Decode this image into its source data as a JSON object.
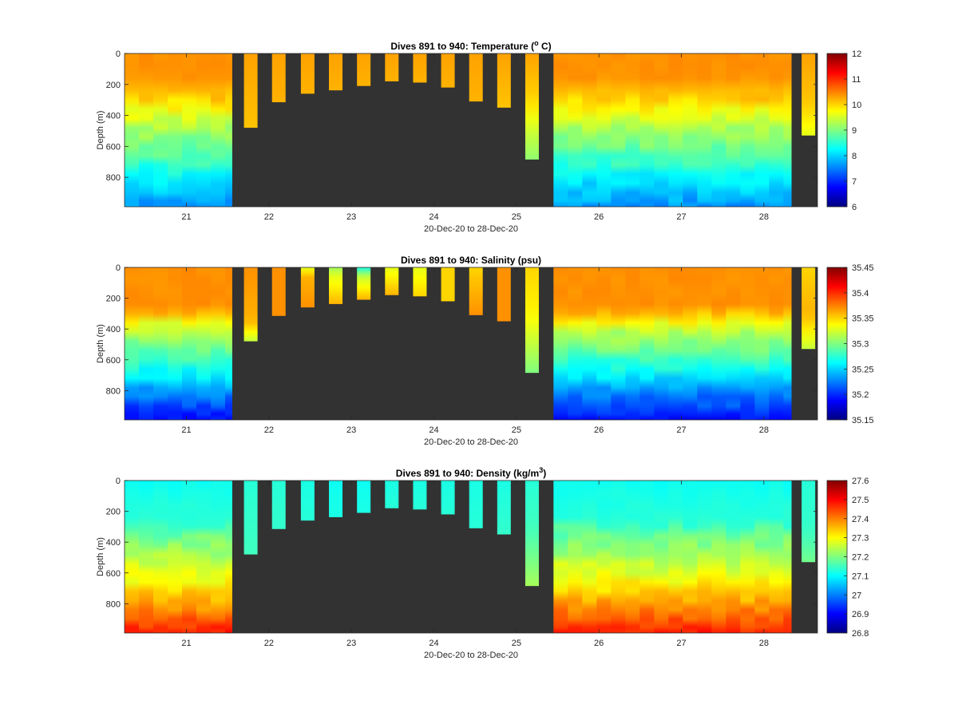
{
  "figure": {
    "background": "#ffffff",
    "plot_background": "#323232",
    "colormap": "jet"
  },
  "chart_data": [
    {
      "type": "heatmap",
      "title": {
        "main": "Dives 891 to 940: Temperature (",
        "sup": "o",
        "post": " C)"
      },
      "xlabel": "20-Dec-20 to 28-Dec-20",
      "ylabel": "Depth (m)",
      "xlim": [
        20.25,
        28.65
      ],
      "ylim": [
        0,
        990
      ],
      "x_ticks": [
        21,
        22,
        23,
        24,
        25,
        26,
        27,
        28
      ],
      "x_tick_labels": [
        "21",
        "22",
        "23",
        "24",
        "25",
        "26",
        "27",
        "28"
      ],
      "y_ticks": [
        0,
        200,
        400,
        600,
        800
      ],
      "y_tick_labels": [
        "0",
        "200",
        "400",
        "600",
        "800"
      ],
      "clim": [
        6,
        12
      ],
      "colorbar_ticks": [
        6,
        7,
        8,
        9,
        10,
        11,
        12
      ],
      "colorbar_tick_labels": [
        "6",
        "7",
        "8",
        "9",
        "10",
        "11",
        "12"
      ],
      "profile_model": "full",
      "profile": [
        [
          0,
          10.4
        ],
        [
          150,
          10.4
        ],
        [
          300,
          10.0
        ],
        [
          400,
          9.6
        ],
        [
          500,
          9.2
        ],
        [
          600,
          8.9
        ],
        [
          700,
          8.6
        ],
        [
          800,
          8.2
        ],
        [
          900,
          7.9
        ],
        [
          990,
          7.6
        ]
      ],
      "full_blocks": [
        {
          "start": 20.25,
          "end": 21.55,
          "max_depth": 990
        },
        {
          "start": 25.45,
          "end": 28.33,
          "max_depth": 990
        }
      ],
      "shallow_casts": [
        {
          "x": 21.78,
          "depth": 480,
          "values": [
            [
              0,
              10.3
            ],
            [
              480,
              10.1
            ]
          ]
        },
        {
          "x": 22.12,
          "depth": 315,
          "values": [
            [
              0,
              10.3
            ],
            [
              315,
              10.2
            ]
          ]
        },
        {
          "x": 22.47,
          "depth": 260,
          "values": [
            [
              0,
              10.3
            ],
            [
              260,
              10.2
            ]
          ]
        },
        {
          "x": 22.81,
          "depth": 238,
          "values": [
            [
              0,
              10.3
            ],
            [
              238,
              10.2
            ]
          ]
        },
        {
          "x": 23.15,
          "depth": 210,
          "values": [
            [
              0,
              10.3
            ],
            [
              210,
              10.2
            ]
          ]
        },
        {
          "x": 23.49,
          "depth": 180,
          "values": [
            [
              0,
              10.3
            ],
            [
              180,
              10.2
            ]
          ]
        },
        {
          "x": 23.83,
          "depth": 188,
          "values": [
            [
              0,
              10.3
            ],
            [
              188,
              10.2
            ]
          ]
        },
        {
          "x": 24.17,
          "depth": 220,
          "values": [
            [
              0,
              10.3
            ],
            [
              220,
              10.2
            ]
          ]
        },
        {
          "x": 24.51,
          "depth": 310,
          "values": [
            [
              0,
              10.3
            ],
            [
              310,
              10.2
            ]
          ]
        },
        {
          "x": 24.85,
          "depth": 350,
          "values": [
            [
              0,
              10.3
            ],
            [
              350,
              10.1
            ]
          ]
        },
        {
          "x": 25.19,
          "depth": 685,
          "values": [
            [
              0,
              10.3
            ],
            [
              300,
              10.0
            ],
            [
              480,
              9.5
            ],
            [
              685,
              9.1
            ]
          ]
        },
        {
          "x": 28.54,
          "depth": 530,
          "values": [
            [
              0,
              10.3
            ],
            [
              300,
              10.1
            ],
            [
              400,
              9.9
            ],
            [
              530,
              9.6
            ]
          ]
        }
      ]
    },
    {
      "type": "heatmap",
      "title": {
        "main": "Dives 891 to 940: Salinity (psu)",
        "sup": "",
        "post": ""
      },
      "xlabel": "20-Dec-20 to 28-Dec-20",
      "ylabel": "Depth (m)",
      "xlim": [
        20.25,
        28.65
      ],
      "ylim": [
        0,
        990
      ],
      "x_ticks": [
        21,
        22,
        23,
        24,
        25,
        26,
        27,
        28
      ],
      "x_tick_labels": [
        "21",
        "22",
        "23",
        "24",
        "25",
        "26",
        "27",
        "28"
      ],
      "y_ticks": [
        0,
        200,
        400,
        600,
        800
      ],
      "y_tick_labels": [
        "0",
        "200",
        "400",
        "600",
        "800"
      ],
      "clim": [
        35.15,
        35.45
      ],
      "colorbar_ticks": [
        35.15,
        35.2,
        35.25,
        35.3,
        35.35,
        35.4,
        35.45
      ],
      "colorbar_tick_labels": [
        "35.15",
        "35.2",
        "35.25",
        "35.3",
        "35.35",
        "35.4",
        "35.45"
      ],
      "profile_model": "full",
      "profile": [
        [
          0,
          35.37
        ],
        [
          250,
          35.37
        ],
        [
          320,
          35.35
        ],
        [
          400,
          35.32
        ],
        [
          500,
          35.3
        ],
        [
          600,
          35.28
        ],
        [
          700,
          35.26
        ],
        [
          800,
          35.23
        ],
        [
          900,
          35.21
        ],
        [
          990,
          35.19
        ]
      ],
      "full_blocks": [
        {
          "start": 20.25,
          "end": 21.55,
          "max_depth": 990
        },
        {
          "start": 25.45,
          "end": 28.33,
          "max_depth": 990
        }
      ],
      "shallow_casts": [
        {
          "x": 21.78,
          "depth": 480,
          "values": [
            [
              0,
              35.37
            ],
            [
              350,
              35.36
            ],
            [
              480,
              35.32
            ]
          ]
        },
        {
          "x": 22.12,
          "depth": 315,
          "values": [
            [
              0,
              35.37
            ],
            [
              315,
              35.37
            ]
          ]
        },
        {
          "x": 22.47,
          "depth": 260,
          "values": [
            [
              0,
              35.33
            ],
            [
              60,
              35.36
            ],
            [
              260,
              35.37
            ]
          ]
        },
        {
          "x": 22.81,
          "depth": 238,
          "values": [
            [
              0,
              35.31
            ],
            [
              60,
              35.33
            ],
            [
              238,
              35.36
            ]
          ]
        },
        {
          "x": 23.15,
          "depth": 210,
          "values": [
            [
              0,
              35.27
            ],
            [
              60,
              35.32
            ],
            [
              210,
              35.36
            ]
          ]
        },
        {
          "x": 23.49,
          "depth": 180,
          "values": [
            [
              0,
              35.33
            ],
            [
              180,
              35.36
            ]
          ]
        },
        {
          "x": 23.83,
          "depth": 188,
          "values": [
            [
              0,
              35.33
            ],
            [
              188,
              35.35
            ]
          ]
        },
        {
          "x": 24.17,
          "depth": 220,
          "values": [
            [
              0,
              35.35
            ],
            [
              220,
              35.35
            ]
          ]
        },
        {
          "x": 24.51,
          "depth": 310,
          "values": [
            [
              0,
              35.35
            ],
            [
              310,
              35.37
            ]
          ]
        },
        {
          "x": 24.85,
          "depth": 350,
          "values": [
            [
              0,
              35.37
            ],
            [
              350,
              35.37
            ]
          ]
        },
        {
          "x": 25.19,
          "depth": 685,
          "values": [
            [
              0,
              35.35
            ],
            [
              300,
              35.34
            ],
            [
              685,
              35.3
            ]
          ]
        },
        {
          "x": 28.54,
          "depth": 530,
          "values": [
            [
              0,
              35.35
            ],
            [
              300,
              35.36
            ],
            [
              530,
              35.32
            ]
          ]
        }
      ]
    },
    {
      "type": "heatmap",
      "title": {
        "main": "Dives 891 to 940: Density (kg/m",
        "sup": "3",
        "post": ")"
      },
      "xlabel": "20-Dec-20 to 28-Dec-20",
      "ylabel": "Depth (m)",
      "xlim": [
        20.25,
        28.65
      ],
      "ylim": [
        0,
        990
      ],
      "x_ticks": [
        21,
        22,
        23,
        24,
        25,
        26,
        27,
        28
      ],
      "x_tick_labels": [
        "21",
        "22",
        "23",
        "24",
        "25",
        "26",
        "27",
        "28"
      ],
      "y_ticks": [
        0,
        200,
        400,
        600,
        800
      ],
      "y_tick_labels": [
        "0",
        "200",
        "400",
        "600",
        "800"
      ],
      "clim": [
        26.8,
        27.6
      ],
      "colorbar_ticks": [
        26.8,
        26.9,
        27,
        27.1,
        27.2,
        27.3,
        27.4,
        27.5,
        27.6
      ],
      "colorbar_tick_labels": [
        "26.8",
        "26.9",
        "27",
        "27.1",
        "27.2",
        "27.3",
        "27.4",
        "27.5",
        "27.6"
      ],
      "profile_model": "full",
      "profile": [
        [
          0,
          27.11
        ],
        [
          250,
          27.13
        ],
        [
          350,
          27.18
        ],
        [
          450,
          27.22
        ],
        [
          550,
          27.26
        ],
        [
          650,
          27.3
        ],
        [
          750,
          27.35
        ],
        [
          850,
          27.4
        ],
        [
          920,
          27.44
        ],
        [
          990,
          27.48
        ]
      ],
      "full_blocks": [
        {
          "start": 20.25,
          "end": 21.55,
          "max_depth": 990
        },
        {
          "start": 25.45,
          "end": 28.33,
          "max_depth": 990
        }
      ],
      "shallow_casts": [
        {
          "x": 21.78,
          "depth": 480,
          "values": [
            [
              0,
              27.13
            ],
            [
              480,
              27.15
            ]
          ]
        },
        {
          "x": 22.12,
          "depth": 315,
          "values": [
            [
              0,
              27.13
            ],
            [
              315,
              27.14
            ]
          ]
        },
        {
          "x": 22.47,
          "depth": 260,
          "values": [
            [
              0,
              27.12
            ],
            [
              260,
              27.13
            ]
          ]
        },
        {
          "x": 22.81,
          "depth": 238,
          "values": [
            [
              0,
              27.11
            ],
            [
              238,
              27.12
            ]
          ]
        },
        {
          "x": 23.15,
          "depth": 210,
          "values": [
            [
              0,
              27.11
            ],
            [
              210,
              27.12
            ]
          ]
        },
        {
          "x": 23.49,
          "depth": 180,
          "values": [
            [
              0,
              27.12
            ],
            [
              180,
              27.13
            ]
          ]
        },
        {
          "x": 23.83,
          "depth": 188,
          "values": [
            [
              0,
              27.12
            ],
            [
              188,
              27.13
            ]
          ]
        },
        {
          "x": 24.17,
          "depth": 220,
          "values": [
            [
              0,
              27.12
            ],
            [
              220,
              27.13
            ]
          ]
        },
        {
          "x": 24.51,
          "depth": 310,
          "values": [
            [
              0,
              27.12
            ],
            [
              310,
              27.13
            ]
          ]
        },
        {
          "x": 24.85,
          "depth": 350,
          "values": [
            [
              0,
              27.12
            ],
            [
              350,
              27.14
            ]
          ]
        },
        {
          "x": 25.19,
          "depth": 685,
          "values": [
            [
              0,
              27.13
            ],
            [
              300,
              27.15
            ],
            [
              685,
              27.23
            ]
          ]
        },
        {
          "x": 28.54,
          "depth": 530,
          "values": [
            [
              0,
              27.13
            ],
            [
              300,
              27.14
            ],
            [
              530,
              27.19
            ]
          ]
        }
      ]
    }
  ]
}
